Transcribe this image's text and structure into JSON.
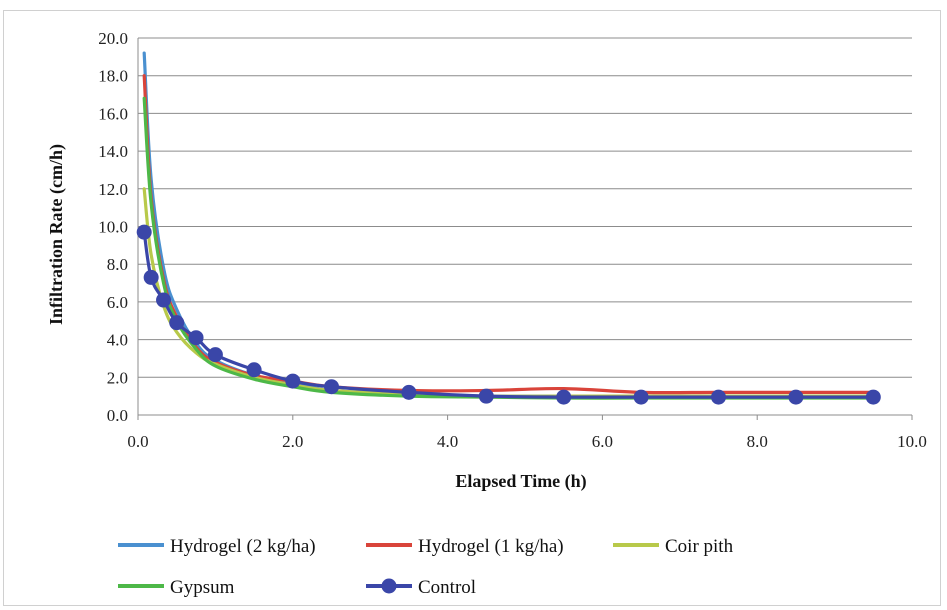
{
  "chart_data": {
    "type": "line",
    "title": "",
    "xlabel": "Elapsed  Time (h)",
    "ylabel": "Infiltration  Rate  (cm/h)",
    "xlim": [
      0,
      10
    ],
    "ylim": [
      0,
      20
    ],
    "x_ticks": [
      "0.0",
      "2.0",
      "4.0",
      "6.0",
      "8.0",
      "10.0"
    ],
    "y_ticks": [
      "0.0",
      "2.0",
      "4.0",
      "6.0",
      "8.0",
      "10.0",
      "12.0",
      "14.0",
      "16.0",
      "18.0",
      "20.0"
    ],
    "grid": "horizontal",
    "legend_position": "bottom",
    "x": [
      0.08,
      0.17,
      0.33,
      0.5,
      0.75,
      1.0,
      1.5,
      2.0,
      2.5,
      3.5,
      4.5,
      5.5,
      6.5,
      7.5,
      8.5,
      9.5
    ],
    "series": [
      {
        "name": "Hydrogel (2 kg/ha)",
        "color": "#4a90d0",
        "marker": "none",
        "values": [
          19.2,
          12.5,
          7.8,
          5.6,
          3.8,
          2.9,
          2.1,
          1.7,
          1.3,
          1.1,
          1.0,
          1.0,
          0.95,
          0.95,
          0.95,
          0.95
        ]
      },
      {
        "name": "Hydrogel (1 kg/ha)",
        "color": "#d9443a",
        "marker": "none",
        "values": [
          18.0,
          11.5,
          7.2,
          5.2,
          3.6,
          2.8,
          2.1,
          1.8,
          1.5,
          1.3,
          1.3,
          1.4,
          1.2,
          1.2,
          1.2,
          1.2
        ]
      },
      {
        "name": "Coir pith",
        "color": "#b8c94a",
        "marker": "none",
        "values": [
          12.0,
          8.5,
          5.8,
          4.4,
          3.3,
          2.7,
          2.0,
          1.6,
          1.3,
          1.1,
          1.0,
          1.0,
          1.0,
          1.0,
          1.0,
          1.0
        ]
      },
      {
        "name": "Gypsum",
        "color": "#4db848",
        "marker": "none",
        "values": [
          16.8,
          11.2,
          7.0,
          5.0,
          3.5,
          2.6,
          1.9,
          1.5,
          1.2,
          1.0,
          0.95,
          0.9,
          0.9,
          0.9,
          0.9,
          0.9
        ]
      },
      {
        "name": "Control",
        "color": "#3a46a8",
        "marker": "circle",
        "values": [
          9.7,
          7.3,
          6.1,
          4.9,
          4.1,
          3.2,
          2.4,
          1.8,
          1.5,
          1.2,
          1.0,
          0.95,
          0.95,
          0.95,
          0.95,
          0.95
        ]
      }
    ]
  }
}
